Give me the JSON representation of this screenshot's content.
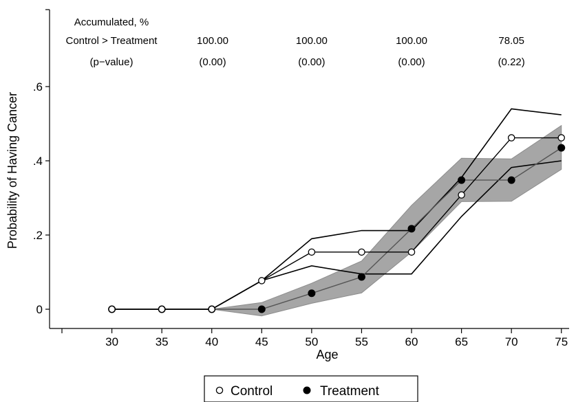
{
  "chart_data": {
    "type": "line",
    "title": "",
    "xlabel": "Age",
    "ylabel": "Probability of Having Cancer",
    "x": [
      30,
      35,
      40,
      45,
      50,
      55,
      60,
      65,
      70,
      75
    ],
    "x_ticks": [
      "30",
      "35",
      "40",
      "45",
      "50",
      "55",
      "60",
      "65",
      "70",
      "75"
    ],
    "xlim": [
      25,
      75.5
    ],
    "ylim": [
      -0.04,
      0.72
    ],
    "y_ticks": [
      {
        "value": 0,
        "label": "0"
      },
      {
        "value": 0.2,
        "label": ".2"
      },
      {
        "value": 0.4,
        "label": ".4"
      },
      {
        "value": 0.6,
        "label": ".6"
      }
    ],
    "series": [
      {
        "name": "Control",
        "marker": "hollow-circle",
        "values": [
          0,
          0,
          0,
          0.077,
          0.154,
          0.154,
          0.154,
          0.308,
          0.462,
          0.462
        ],
        "ci_upper": [
          0,
          0,
          0,
          0.077,
          0.19,
          0.212,
          0.212,
          0.355,
          0.54,
          0.524
        ],
        "ci_lower": [
          0,
          0,
          0,
          0.077,
          0.117,
          0.095,
          0.095,
          0.25,
          0.382,
          0.4
        ]
      },
      {
        "name": "Treatment",
        "marker": "filled-circle",
        "values": [
          0,
          0,
          0,
          0,
          0.043,
          0.087,
          0.217,
          0.348,
          0.348,
          0.435
        ],
        "ci_upper": [
          0,
          0,
          0,
          0.018,
          0.07,
          0.13,
          0.28,
          0.407,
          0.405,
          0.495
        ],
        "ci_lower": [
          0,
          0,
          0,
          -0.018,
          0.016,
          0.044,
          0.154,
          0.29,
          0.291,
          0.377
        ]
      }
    ],
    "annotation_table": {
      "header_lines": [
        "Accumulated, %",
        "Control > Treatment",
        "(p−value)"
      ],
      "columns": [
        {
          "age": 45,
          "percent": "100.00",
          "pvalue": "(0.00)"
        },
        {
          "age": 50,
          "percent": "100.00",
          "pvalue": "(0.00)"
        },
        {
          "age": 60,
          "percent": "100.00",
          "pvalue": "(0.00)"
        },
        {
          "age": 70,
          "percent": "78.05",
          "pvalue": "(0.22)"
        }
      ]
    },
    "legend": {
      "position": "bottom",
      "entries": [
        "Control",
        "Treatment"
      ]
    },
    "grid": false,
    "colors": {
      "control_line": "#000000",
      "treatment_line": "#555555",
      "ci_band": "#a6a6a6",
      "ci_band_edge": "#8c8c8c"
    }
  }
}
